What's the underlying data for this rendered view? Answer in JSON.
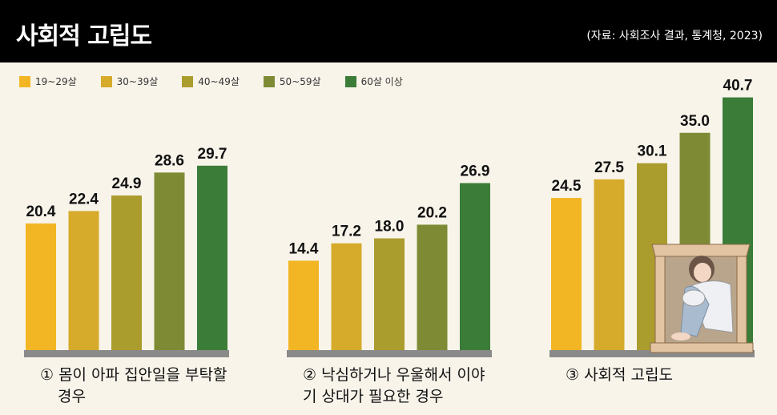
{
  "header": {
    "title": "사회적 고립도",
    "source": "(자료: 사회조사 결과, 통계청, 2023)"
  },
  "chart_data": {
    "type": "bar",
    "title": "사회적 고립도",
    "series": [
      {
        "name": "19~29살",
        "color": "#f2b523"
      },
      {
        "name": "30~39살",
        "color": "#d6aa2a"
      },
      {
        "name": "40~49살",
        "color": "#ab9c2e"
      },
      {
        "name": "50~59살",
        "color": "#7e8b34"
      },
      {
        "name": "60살 이상",
        "color": "#3b7d38"
      }
    ],
    "legend_position": "top-left",
    "groups": [
      {
        "label_line1": "① 몸이 아파 집안일을 부탁할",
        "label_line2": "경우",
        "values": [
          20.4,
          22.4,
          24.9,
          28.6,
          29.7
        ]
      },
      {
        "label_line1": "② 낙심하거나 우울해서 이야",
        "label_line2": "기 상대가 필요한 경우",
        "values": [
          14.4,
          17.2,
          18.0,
          20.2,
          26.9
        ]
      },
      {
        "label_line1": "③ 사회적 고립도",
        "label_line2": "",
        "values": [
          24.5,
          27.5,
          30.1,
          35.0,
          40.7
        ]
      }
    ],
    "ylim": [
      0,
      42
    ]
  }
}
